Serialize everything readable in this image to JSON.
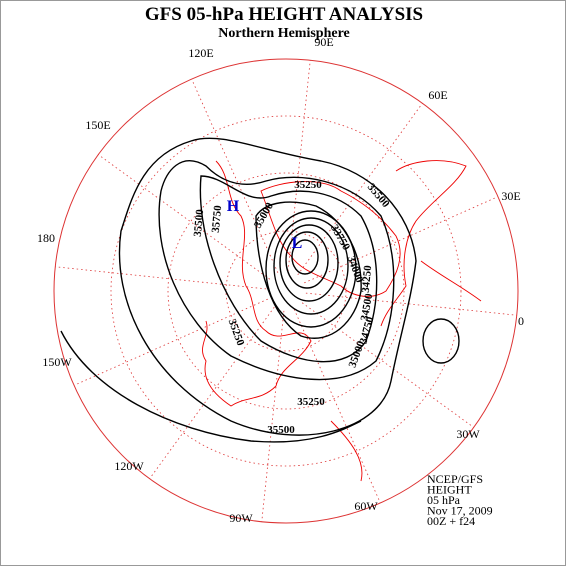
{
  "header": {
    "title": "GFS 05-hPa HEIGHT ANALYSIS",
    "subtitle": "Northern Hemisphere"
  },
  "longitude_labels": [
    "90E",
    "60E",
    "30E",
    "0",
    "30W",
    "60W",
    "90W",
    "120W",
    "150W",
    "180",
    "150E",
    "120E"
  ],
  "contour_labels": [
    35250,
    35500,
    35000,
    35750,
    35500,
    33750,
    34000,
    34250,
    34500,
    34750,
    35000,
    35250,
    35500,
    35250
  ],
  "centers": {
    "high": "H",
    "low": "L"
  },
  "info": [
    "NCEP/GFS",
    "HEIGHT",
    "05 hPa",
    "Nov 17, 2009",
    "00Z + f24"
  ]
}
